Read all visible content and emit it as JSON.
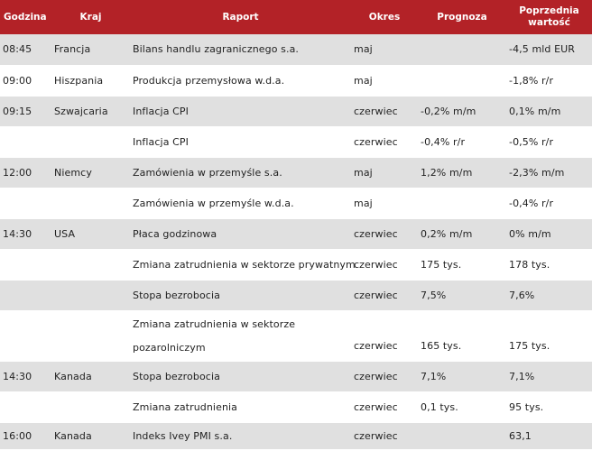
{
  "header": {
    "time": "Godzina",
    "country": "Kraj",
    "report": "Raport",
    "period": "Okres",
    "forecast": "Prognoza",
    "previous": "Poprzednia wartość"
  },
  "rows": [
    {
      "time": "08:45",
      "country": "Francja",
      "report": "Bilans handlu zagranicznego s.a.",
      "period": "maj",
      "forecast": "",
      "previous": "-4,5 mld EUR"
    },
    {
      "time": "09:00",
      "country": "Hiszpania",
      "report": "Produkcja przemysłowa w.d.a.",
      "period": "maj",
      "forecast": "",
      "previous": "-1,8% r/r"
    },
    {
      "time": "09:15",
      "country": "Szwajcaria",
      "report": "Inflacja CPI",
      "period": "czerwiec",
      "forecast": "-0,2% m/m",
      "previous": "0,1% m/m"
    },
    {
      "time": "",
      "country": "",
      "report": "Inflacja CPI",
      "period": "czerwiec",
      "forecast": "-0,4% r/r",
      "previous": "-0,5% r/r"
    },
    {
      "time": "12:00",
      "country": "Niemcy",
      "report": "Zamówienia w przemyśle s.a.",
      "period": "maj",
      "forecast": "1,2% m/m",
      "previous": "-2,3% m/m"
    },
    {
      "time": "",
      "country": "",
      "report": "Zamówienia w przemyśle w.d.a.",
      "period": "maj",
      "forecast": "",
      "previous": "-0,4% r/r"
    },
    {
      "time": "14:30",
      "country": "USA",
      "report": "Płaca godzinowa",
      "period": "czerwiec",
      "forecast": "0,2% m/m",
      "previous": "0% m/m"
    },
    {
      "time": "",
      "country": "",
      "report": "Zmiana zatrudnienia w sektorze prywatnym",
      "period": "czerwiec",
      "forecast": "175 tys.",
      "previous": "178 tys."
    },
    {
      "time": "",
      "country": "",
      "report": "Stopa bezrobocia",
      "period": "czerwiec",
      "forecast": "7,5%",
      "previous": "7,6%"
    },
    {
      "time": "",
      "country": "",
      "report": "Zmiana zatrudnienia w sektorze pozarolniczym",
      "period": "czerwiec",
      "forecast": "165 tys.",
      "previous": "175 tys."
    },
    {
      "time": "14:30",
      "country": "Kanada",
      "report": "Stopa bezrobocia",
      "period": "czerwiec",
      "forecast": "7,1%",
      "previous": "7,1%"
    },
    {
      "time": "",
      "country": "",
      "report": "Zmiana zatrudnienia",
      "period": "czerwiec",
      "forecast": "0,1 tys.",
      "previous": "95 tys."
    },
    {
      "time": "16:00",
      "country": "Kanada",
      "report": "Indeks Ivey PMI s.a.",
      "period": "czerwiec",
      "forecast": "",
      "previous": "63,1"
    }
  ],
  "colors": {
    "header_bg": "#b32227",
    "shade": "#e0e0e0"
  }
}
